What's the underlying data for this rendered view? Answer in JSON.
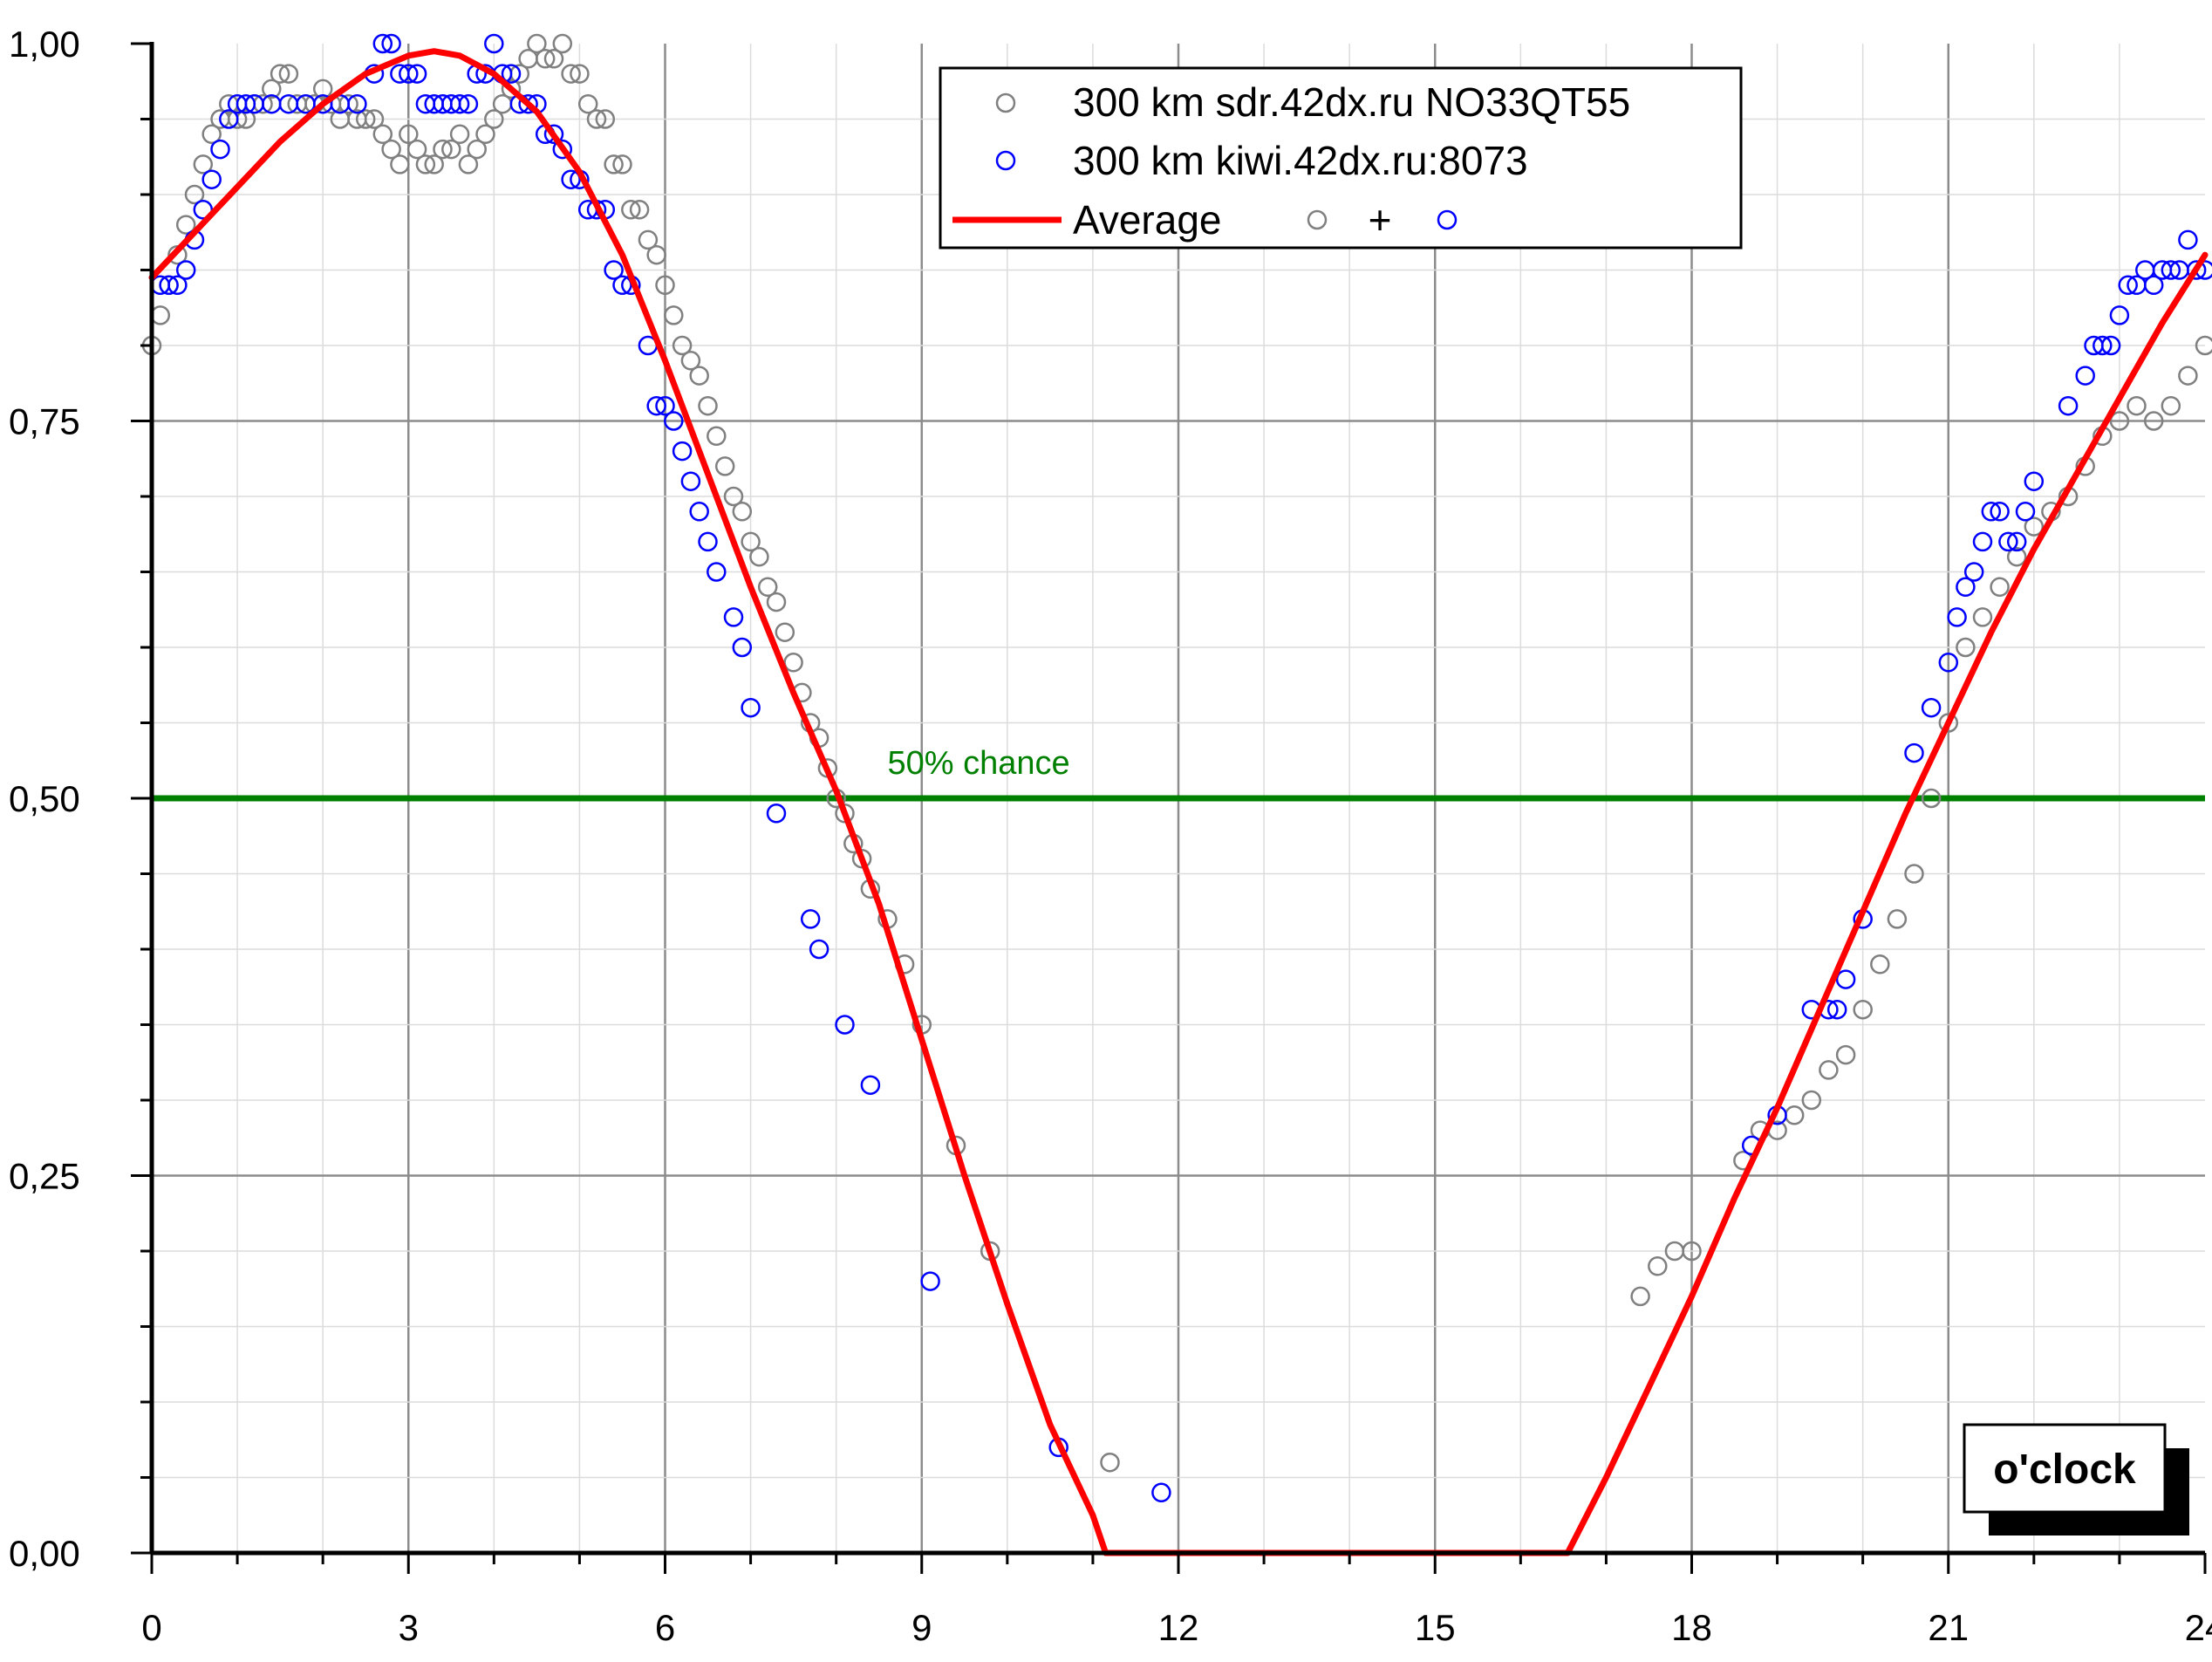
{
  "chart_data": {
    "type": "scatter",
    "title": "",
    "xlabel": "",
    "ylabel": "",
    "xlim": [
      0,
      24
    ],
    "ylim": [
      0,
      1
    ],
    "x_ticks": [
      "0",
      "3",
      "6",
      "9",
      "12",
      "15",
      "18",
      "21",
      "24"
    ],
    "y_ticks": [
      "0,00",
      "0,25",
      "0,50",
      "0,75",
      "1,00"
    ],
    "grid": true,
    "legend_position": "top-center",
    "legend": {
      "series1": "300 km sdr.42dx.ru NO33QT55",
      "series2": "300 km kiwi.42dx.ru:8073",
      "average": "Average",
      "plus": "+"
    },
    "threshold": {
      "value": 0.5,
      "label": "50% chance",
      "color": "#008000"
    },
    "corner_label": "o'clock",
    "colors": {
      "series1": "#808080",
      "series2": "#0000ff",
      "average": "#ff0000"
    },
    "series": [
      {
        "name": "300 km sdr.42dx.ru NO33QT55",
        "marker": "open-circle",
        "points": [
          [
            0.0,
            0.8
          ],
          [
            0.1,
            0.82
          ],
          [
            0.2,
            0.84
          ],
          [
            0.3,
            0.86
          ],
          [
            0.4,
            0.88
          ],
          [
            0.5,
            0.9
          ],
          [
            0.6,
            0.92
          ],
          [
            0.7,
            0.94
          ],
          [
            0.8,
            0.95
          ],
          [
            0.9,
            0.96
          ],
          [
            1.0,
            0.95
          ],
          [
            1.1,
            0.95
          ],
          [
            1.2,
            0.96
          ],
          [
            1.3,
            0.96
          ],
          [
            1.4,
            0.97
          ],
          [
            1.5,
            0.98
          ],
          [
            1.6,
            0.98
          ],
          [
            1.7,
            0.96
          ],
          [
            1.8,
            0.96
          ],
          [
            1.9,
            0.96
          ],
          [
            2.0,
            0.97
          ],
          [
            2.1,
            0.96
          ],
          [
            2.2,
            0.95
          ],
          [
            2.3,
            0.96
          ],
          [
            2.4,
            0.95
          ],
          [
            2.5,
            0.95
          ],
          [
            2.6,
            0.95
          ],
          [
            2.7,
            0.94
          ],
          [
            2.8,
            0.93
          ],
          [
            2.9,
            0.92
          ],
          [
            3.0,
            0.94
          ],
          [
            3.1,
            0.93
          ],
          [
            3.2,
            0.92
          ],
          [
            3.3,
            0.92
          ],
          [
            3.4,
            0.93
          ],
          [
            3.5,
            0.93
          ],
          [
            3.6,
            0.94
          ],
          [
            3.7,
            0.92
          ],
          [
            3.8,
            0.93
          ],
          [
            3.9,
            0.94
          ],
          [
            4.0,
            0.95
          ],
          [
            4.1,
            0.96
          ],
          [
            4.2,
            0.97
          ],
          [
            4.3,
            0.98
          ],
          [
            4.4,
            0.99
          ],
          [
            4.5,
            1.0
          ],
          [
            4.6,
            0.99
          ],
          [
            4.7,
            0.99
          ],
          [
            4.8,
            1.0
          ],
          [
            4.9,
            0.98
          ],
          [
            5.0,
            0.98
          ],
          [
            5.1,
            0.96
          ],
          [
            5.2,
            0.95
          ],
          [
            5.3,
            0.95
          ],
          [
            5.4,
            0.92
          ],
          [
            5.5,
            0.92
          ],
          [
            5.6,
            0.89
          ],
          [
            5.7,
            0.89
          ],
          [
            5.8,
            0.87
          ],
          [
            5.9,
            0.86
          ],
          [
            6.0,
            0.84
          ],
          [
            6.1,
            0.82
          ],
          [
            6.2,
            0.8
          ],
          [
            6.3,
            0.79
          ],
          [
            6.4,
            0.78
          ],
          [
            6.5,
            0.76
          ],
          [
            6.6,
            0.74
          ],
          [
            6.7,
            0.72
          ],
          [
            6.8,
            0.7
          ],
          [
            6.9,
            0.69
          ],
          [
            7.0,
            0.67
          ],
          [
            7.1,
            0.66
          ],
          [
            7.2,
            0.64
          ],
          [
            7.3,
            0.63
          ],
          [
            7.4,
            0.61
          ],
          [
            7.5,
            0.59
          ],
          [
            7.6,
            0.57
          ],
          [
            7.7,
            0.55
          ],
          [
            7.8,
            0.54
          ],
          [
            7.9,
            0.52
          ],
          [
            8.0,
            0.5
          ],
          [
            8.1,
            0.49
          ],
          [
            8.2,
            0.47
          ],
          [
            8.3,
            0.46
          ],
          [
            8.4,
            0.44
          ],
          [
            8.6,
            0.42
          ],
          [
            8.8,
            0.39
          ],
          [
            9.0,
            0.35
          ],
          [
            9.4,
            0.27
          ],
          [
            9.8,
            0.2
          ],
          [
            11.2,
            0.06
          ],
          [
            17.4,
            0.17
          ],
          [
            17.6,
            0.19
          ],
          [
            17.8,
            0.2
          ],
          [
            18.0,
            0.2
          ],
          [
            18.6,
            0.26
          ],
          [
            18.8,
            0.28
          ],
          [
            19.0,
            0.28
          ],
          [
            19.2,
            0.29
          ],
          [
            19.4,
            0.3
          ],
          [
            19.6,
            0.32
          ],
          [
            19.8,
            0.33
          ],
          [
            20.0,
            0.36
          ],
          [
            20.2,
            0.39
          ],
          [
            20.4,
            0.42
          ],
          [
            20.6,
            0.45
          ],
          [
            20.8,
            0.5
          ],
          [
            21.0,
            0.55
          ],
          [
            21.2,
            0.6
          ],
          [
            21.4,
            0.62
          ],
          [
            21.6,
            0.64
          ],
          [
            21.8,
            0.66
          ],
          [
            22.0,
            0.68
          ],
          [
            22.2,
            0.69
          ],
          [
            22.4,
            0.7
          ],
          [
            22.6,
            0.72
          ],
          [
            22.8,
            0.74
          ],
          [
            23.0,
            0.75
          ],
          [
            23.2,
            0.76
          ],
          [
            23.4,
            0.75
          ],
          [
            23.6,
            0.76
          ],
          [
            23.8,
            0.78
          ],
          [
            24.0,
            0.8
          ]
        ]
      },
      {
        "name": "300 km kiwi.42dx.ru:8073",
        "marker": "open-circle",
        "points": [
          [
            0.1,
            0.84
          ],
          [
            0.2,
            0.84
          ],
          [
            0.3,
            0.84
          ],
          [
            0.4,
            0.85
          ],
          [
            0.5,
            0.87
          ],
          [
            0.6,
            0.89
          ],
          [
            0.7,
            0.91
          ],
          [
            0.8,
            0.93
          ],
          [
            0.9,
            0.95
          ],
          [
            1.0,
            0.96
          ],
          [
            1.1,
            0.96
          ],
          [
            1.2,
            0.96
          ],
          [
            1.4,
            0.96
          ],
          [
            1.6,
            0.96
          ],
          [
            1.8,
            0.96
          ],
          [
            2.0,
            0.96
          ],
          [
            2.2,
            0.96
          ],
          [
            2.4,
            0.96
          ],
          [
            2.6,
            0.98
          ],
          [
            2.7,
            1.0
          ],
          [
            2.8,
            1.0
          ],
          [
            2.9,
            0.98
          ],
          [
            3.0,
            0.98
          ],
          [
            3.1,
            0.98
          ],
          [
            3.2,
            0.96
          ],
          [
            3.3,
            0.96
          ],
          [
            3.4,
            0.96
          ],
          [
            3.5,
            0.96
          ],
          [
            3.6,
            0.96
          ],
          [
            3.7,
            0.96
          ],
          [
            3.8,
            0.98
          ],
          [
            3.9,
            0.98
          ],
          [
            4.0,
            1.0
          ],
          [
            4.1,
            0.98
          ],
          [
            4.2,
            0.98
          ],
          [
            4.3,
            0.96
          ],
          [
            4.4,
            0.96
          ],
          [
            4.5,
            0.96
          ],
          [
            4.6,
            0.94
          ],
          [
            4.7,
            0.94
          ],
          [
            4.8,
            0.93
          ],
          [
            4.9,
            0.91
          ],
          [
            5.0,
            0.91
          ],
          [
            5.1,
            0.89
          ],
          [
            5.2,
            0.89
          ],
          [
            5.3,
            0.89
          ],
          [
            5.4,
            0.85
          ],
          [
            5.5,
            0.84
          ],
          [
            5.6,
            0.84
          ],
          [
            5.8,
            0.8
          ],
          [
            5.9,
            0.76
          ],
          [
            6.0,
            0.76
          ],
          [
            6.1,
            0.75
          ],
          [
            6.2,
            0.73
          ],
          [
            6.3,
            0.71
          ],
          [
            6.4,
            0.69
          ],
          [
            6.5,
            0.67
          ],
          [
            6.6,
            0.65
          ],
          [
            6.8,
            0.62
          ],
          [
            6.9,
            0.6
          ],
          [
            7.0,
            0.56
          ],
          [
            7.3,
            0.49
          ],
          [
            7.7,
            0.42
          ],
          [
            7.8,
            0.4
          ],
          [
            8.1,
            0.35
          ],
          [
            8.4,
            0.31
          ],
          [
            9.1,
            0.18
          ],
          [
            10.6,
            0.07
          ],
          [
            11.8,
            0.04
          ],
          [
            18.7,
            0.27
          ],
          [
            19.0,
            0.29
          ],
          [
            19.4,
            0.36
          ],
          [
            19.6,
            0.36
          ],
          [
            19.7,
            0.36
          ],
          [
            19.8,
            0.38
          ],
          [
            20.0,
            0.42
          ],
          [
            20.6,
            0.53
          ],
          [
            20.8,
            0.56
          ],
          [
            21.0,
            0.59
          ],
          [
            21.1,
            0.62
          ],
          [
            21.2,
            0.64
          ],
          [
            21.3,
            0.65
          ],
          [
            21.4,
            0.67
          ],
          [
            21.5,
            0.69
          ],
          [
            21.6,
            0.69
          ],
          [
            21.7,
            0.67
          ],
          [
            21.8,
            0.67
          ],
          [
            21.9,
            0.69
          ],
          [
            22.0,
            0.71
          ],
          [
            22.4,
            0.76
          ],
          [
            22.6,
            0.78
          ],
          [
            22.7,
            0.8
          ],
          [
            22.8,
            0.8
          ],
          [
            22.9,
            0.8
          ],
          [
            23.0,
            0.82
          ],
          [
            23.1,
            0.84
          ],
          [
            23.2,
            0.84
          ],
          [
            23.3,
            0.85
          ],
          [
            23.4,
            0.84
          ],
          [
            23.5,
            0.85
          ],
          [
            23.6,
            0.85
          ],
          [
            23.7,
            0.85
          ],
          [
            23.8,
            0.87
          ],
          [
            23.9,
            0.85
          ],
          [
            24.0,
            0.85
          ]
        ]
      },
      {
        "name": "Average",
        "marker": "line",
        "points": [
          [
            0.0,
            0.845
          ],
          [
            0.5,
            0.875
          ],
          [
            1.0,
            0.905
          ],
          [
            1.5,
            0.935
          ],
          [
            2.0,
            0.96
          ],
          [
            2.5,
            0.98
          ],
          [
            3.0,
            0.992
          ],
          [
            3.3,
            0.995
          ],
          [
            3.6,
            0.992
          ],
          [
            4.0,
            0.98
          ],
          [
            4.5,
            0.955
          ],
          [
            5.0,
            0.915
          ],
          [
            5.5,
            0.86
          ],
          [
            6.0,
            0.79
          ],
          [
            6.5,
            0.715
          ],
          [
            7.0,
            0.64
          ],
          [
            7.5,
            0.57
          ],
          [
            8.0,
            0.505
          ],
          [
            8.5,
            0.43
          ],
          [
            9.0,
            0.34
          ],
          [
            9.5,
            0.25
          ],
          [
            10.0,
            0.165
          ],
          [
            10.5,
            0.085
          ],
          [
            11.0,
            0.025
          ],
          [
            11.15,
            0.0
          ],
          [
            16.55,
            0.0
          ],
          [
            17.0,
            0.05
          ],
          [
            17.5,
            0.11
          ],
          [
            18.0,
            0.17
          ],
          [
            18.5,
            0.235
          ],
          [
            19.0,
            0.295
          ],
          [
            19.5,
            0.36
          ],
          [
            20.0,
            0.425
          ],
          [
            20.5,
            0.49
          ],
          [
            21.0,
            0.55
          ],
          [
            21.5,
            0.61
          ],
          [
            22.0,
            0.665
          ],
          [
            22.5,
            0.715
          ],
          [
            23.0,
            0.765
          ],
          [
            23.5,
            0.815
          ],
          [
            24.0,
            0.86
          ]
        ]
      }
    ]
  }
}
